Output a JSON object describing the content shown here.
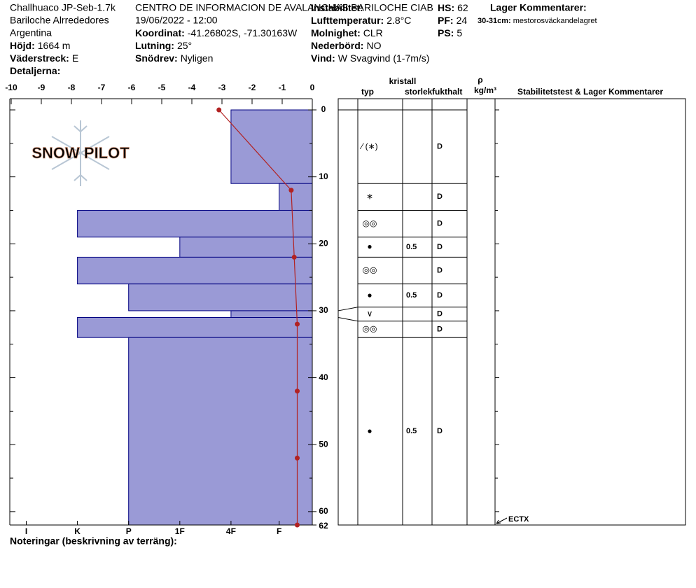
{
  "header": {
    "site": "Challhuaco JP-Seb-1.7k",
    "area": "Bariloche Alrrededores",
    "country": "Argentina",
    "elevation": {
      "label": "Höjd:",
      "value": "1664 m"
    },
    "aspect": {
      "label": "Väderstreck:",
      "value": "E"
    },
    "details": {
      "label": "Detaljerna:"
    },
    "organization": "CENTRO DE INFORMACION DE AVALANCHAS BARILOCHE CIAB",
    "datetime": "19/06/2022 - 12:00",
    "coordinates": {
      "label": "Koordinat:",
      "value": "-41.26802S, -71.30163W"
    },
    "slope": {
      "label": "Lutning:",
      "value": "25°"
    },
    "drift": {
      "label": "Snödrev:",
      "value": "Nyligen"
    },
    "instability": {
      "label": "Instabilitet:"
    },
    "air_temp": {
      "label": "Lufttemperatur:",
      "value": "2.8°C"
    },
    "sky": {
      "label": "Molnighet:",
      "value": "CLR"
    },
    "precip": {
      "label": "Nederbörd:",
      "value": "NO"
    },
    "wind": {
      "label": "Vind:",
      "value": "W Svagvind (1-7m/s)"
    },
    "hs": {
      "label": "HS:",
      "value": "62"
    },
    "pf": {
      "label": "PF:",
      "value": "24"
    },
    "ps": {
      "label": "PS:",
      "value": "5"
    },
    "layer_comments": {
      "title": "Lager Kommentarer:",
      "items": [
        {
          "label": "30-31cm:",
          "text": "mestorosväckandelagret"
        }
      ]
    }
  },
  "logo": "SNOW PILOT",
  "chart_data": {
    "type": "snowprofile",
    "xlim": [
      -10,
      0
    ],
    "xticks": [
      -10,
      -9,
      -8,
      -7,
      -6,
      -5,
      -4,
      -3,
      -2,
      -1,
      0
    ],
    "ylim": [
      0,
      62
    ],
    "yticks": [
      0,
      10,
      20,
      30,
      40,
      50,
      60,
      62
    ],
    "minor_yticks": [
      5,
      15,
      25,
      35,
      45,
      55
    ],
    "hardness_ticks": [
      {
        "value": -9.5,
        "label": "I"
      },
      {
        "value": -7.8,
        "label": "K"
      },
      {
        "value": -6.1,
        "label": "P"
      },
      {
        "value": -4.4,
        "label": "1F"
      },
      {
        "value": -2.7,
        "label": "4F"
      },
      {
        "value": -1.1,
        "label": "F"
      }
    ],
    "depths": [
      0,
      11,
      15,
      19,
      22,
      26,
      30,
      31,
      34,
      62
    ],
    "hardness": [
      -2.7,
      -1.1,
      -7.8,
      -4.4,
      -7.8,
      -6.1,
      -2.7,
      -7.8,
      -6.1
    ],
    "bar_color": "#9a9ad6",
    "bar_edge": "#000080",
    "temperature": {
      "color": "#b22222",
      "depth": [
        0,
        12,
        22,
        32,
        42,
        52,
        62
      ],
      "values": [
        -3.1,
        -0.7,
        -0.6,
        -0.5,
        -0.5,
        -0.5,
        -0.5
      ]
    }
  },
  "table": {
    "headers": {
      "crystal": "kristall",
      "type": "typ",
      "size": "storlek",
      "wetness": "fukthalt",
      "density": "ρ",
      "density_unit": "kg/m³",
      "comments": "Stabilitetstest & Lager Kommentarer"
    },
    "grain_type": [
      "⁄ (∗)",
      "∗",
      "◎◎",
      "●",
      "◎◎",
      "●",
      "∨",
      "◎◎",
      "●"
    ],
    "grain_size": [
      null,
      null,
      null,
      0.5,
      null,
      0.5,
      null,
      null,
      0.5
    ],
    "wetness": [
      "D",
      "D",
      "D",
      "D",
      "D",
      "D",
      "D",
      "D",
      "D"
    ],
    "tests": [
      {
        "depth": 62,
        "label": "ECTX"
      }
    ]
  },
  "notes": "Noteringar (beskrivning av terräng):"
}
